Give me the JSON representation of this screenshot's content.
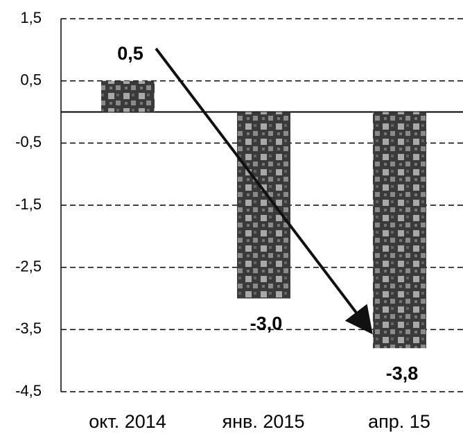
{
  "chart_data": {
    "type": "bar",
    "categories": [
      "окт. 2014",
      "янв. 2015",
      "апр. 15"
    ],
    "values": [
      0.5,
      -3.0,
      -3.8
    ],
    "value_labels": [
      "0,5",
      "-3,0",
      "-3,8"
    ],
    "color": "#555555",
    "ylim": [
      -4.5,
      1.5
    ],
    "yticks": [
      {
        "value": 1.5,
        "label": "1,5"
      },
      {
        "value": 0.5,
        "label": "0,5"
      },
      {
        "value": -0.5,
        "label": "-0,5"
      },
      {
        "value": -1.5,
        "label": "-1,5"
      },
      {
        "value": -2.5,
        "label": "-2,5"
      },
      {
        "value": -3.5,
        "label": "-3,5"
      },
      {
        "value": -4.5,
        "label": "-4,5"
      }
    ],
    "grid": true
  }
}
